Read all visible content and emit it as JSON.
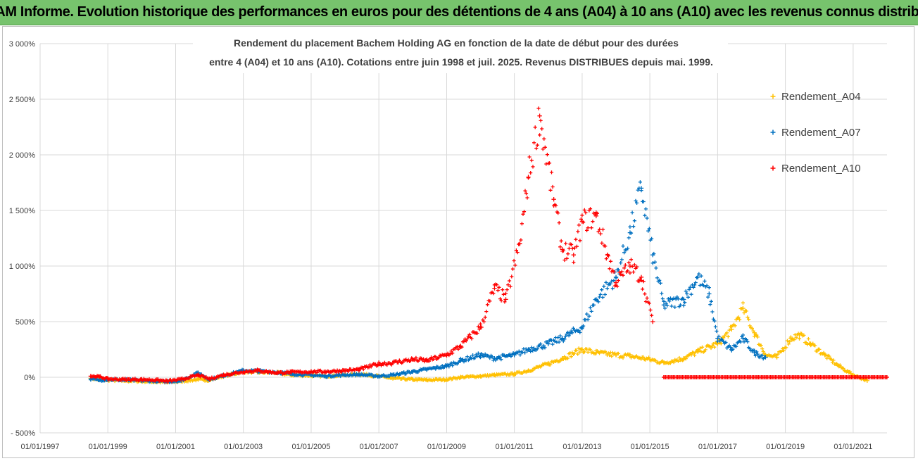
{
  "banner": {
    "title": "ADAM Informe. Evolution historique des performances en euros pour des détentions de 4 ans (A04) à 10 ans (A10) avec les revenus connus distribués"
  },
  "chart_data": {
    "type": "scatter",
    "title_line1": "Rendement du placement Bachem Holding AG en fonction de la date de début pour des durées",
    "title_line2": "entre 4 (A04) et 10 ans (A10). Cotations entre juin 1998 et juil. 2025. Revenus DISTRIBUES depuis mai. 1999.",
    "xlabel": "",
    "ylabel": "",
    "x_range": [
      "01/01/1997",
      "01/01/2022"
    ],
    "y_range": [
      -500,
      3000
    ],
    "y_ticks": [
      "3 000%",
      "2 500%",
      "2 000%",
      "1 500%",
      "1 000%",
      "500%",
      "0%",
      "- 500%"
    ],
    "x_ticks": [
      "01/01/1997",
      "01/01/1999",
      "01/01/2001",
      "01/01/2003",
      "01/01/2005",
      "01/01/2007",
      "01/01/2009",
      "01/01/2011",
      "01/01/2013",
      "01/01/2015",
      "01/01/2017",
      "01/01/2019",
      "01/01/2021"
    ],
    "grid": true,
    "legend_position": "right",
    "marker": "+",
    "series": [
      {
        "name": "Rendement_A04",
        "color": "#FFC000",
        "points": [
          [
            "1998-07-01",
            -10
          ],
          [
            "1998-10-01",
            -20
          ],
          [
            "1999-01-01",
            -25
          ],
          [
            "1999-06-01",
            -30
          ],
          [
            "2000-01-01",
            -35
          ],
          [
            "2000-06-01",
            -40
          ],
          [
            "2000-10-01",
            -45
          ],
          [
            "2001-03-01",
            -35
          ],
          [
            "2001-09-01",
            -20
          ],
          [
            "2002-01-01",
            -25
          ],
          [
            "2002-06-01",
            10
          ],
          [
            "2003-01-01",
            50
          ],
          [
            "2003-06-01",
            45
          ],
          [
            "2004-01-01",
            40
          ],
          [
            "2004-06-01",
            20
          ],
          [
            "2005-01-01",
            15
          ],
          [
            "2005-06-01",
            10
          ],
          [
            "2006-01-01",
            20
          ],
          [
            "2006-06-01",
            30
          ],
          [
            "2007-01-01",
            10
          ],
          [
            "2007-06-01",
            -10
          ],
          [
            "2008-01-01",
            -20
          ],
          [
            "2008-06-01",
            -25
          ],
          [
            "2009-01-01",
            -20
          ],
          [
            "2009-06-01",
            0
          ],
          [
            "2010-01-01",
            10
          ],
          [
            "2010-06-01",
            20
          ],
          [
            "2011-01-01",
            30
          ],
          [
            "2011-06-01",
            60
          ],
          [
            "2012-01-01",
            120
          ],
          [
            "2012-06-01",
            170
          ],
          [
            "2013-01-01",
            250
          ],
          [
            "2013-06-01",
            220
          ],
          [
            "2014-01-01",
            200
          ],
          [
            "2014-06-01",
            190
          ],
          [
            "2015-01-01",
            160
          ],
          [
            "2015-06-01",
            130
          ],
          [
            "2016-01-01",
            170
          ],
          [
            "2016-06-01",
            230
          ],
          [
            "2017-01-01",
            300
          ],
          [
            "2017-06-01",
            430
          ],
          [
            "2017-10-01",
            620
          ],
          [
            "2018-02-01",
            400
          ],
          [
            "2018-06-01",
            200
          ],
          [
            "2018-10-01",
            180
          ],
          [
            "2019-03-01",
            350
          ],
          [
            "2019-06-01",
            380
          ],
          [
            "2019-10-01",
            300
          ],
          [
            "2020-03-01",
            200
          ],
          [
            "2020-08-01",
            100
          ],
          [
            "2021-01-01",
            20
          ],
          [
            "2021-06-01",
            -30
          ]
        ]
      },
      {
        "name": "Rendement_A07",
        "color": "#0070C0",
        "points": [
          [
            "1998-07-01",
            -15
          ],
          [
            "1998-10-01",
            -25
          ],
          [
            "1999-01-01",
            -20
          ],
          [
            "1999-06-01",
            -25
          ],
          [
            "2000-01-01",
            -30
          ],
          [
            "2000-06-01",
            -35
          ],
          [
            "2000-10-01",
            -40
          ],
          [
            "2001-03-01",
            -30
          ],
          [
            "2001-09-01",
            40
          ],
          [
            "2002-01-01",
            -20
          ],
          [
            "2002-06-01",
            15
          ],
          [
            "2003-01-01",
            60
          ],
          [
            "2003-06-01",
            55
          ],
          [
            "2004-01-01",
            45
          ],
          [
            "2004-06-01",
            30
          ],
          [
            "2005-01-01",
            20
          ],
          [
            "2005-06-01",
            10
          ],
          [
            "2006-01-01",
            20
          ],
          [
            "2006-06-01",
            25
          ],
          [
            "2007-01-01",
            10
          ],
          [
            "2007-06-01",
            20
          ],
          [
            "2008-01-01",
            50
          ],
          [
            "2008-06-01",
            70
          ],
          [
            "2009-01-01",
            100
          ],
          [
            "2009-06-01",
            150
          ],
          [
            "2010-01-01",
            200
          ],
          [
            "2010-06-01",
            170
          ],
          [
            "2011-01-01",
            200
          ],
          [
            "2011-06-01",
            250
          ],
          [
            "2012-01-01",
            300
          ],
          [
            "2012-06-01",
            350
          ],
          [
            "2013-01-01",
            450
          ],
          [
            "2013-06-01",
            700
          ],
          [
            "2014-01-01",
            900
          ],
          [
            "2014-06-01",
            1300
          ],
          [
            "2014-10-01",
            1700
          ],
          [
            "2015-02-01",
            1100
          ],
          [
            "2015-06-01",
            650
          ],
          [
            "2016-01-01",
            700
          ],
          [
            "2016-06-01",
            900
          ],
          [
            "2016-10-01",
            750
          ],
          [
            "2017-01-01",
            350
          ],
          [
            "2017-06-01",
            250
          ],
          [
            "2017-10-01",
            350
          ],
          [
            "2018-02-01",
            220
          ],
          [
            "2018-06-01",
            180
          ]
        ]
      },
      {
        "name": "Rendement_A10",
        "color": "#FF0000",
        "points": [
          [
            "1998-07-01",
            10
          ],
          [
            "1998-10-01",
            5
          ],
          [
            "1999-01-01",
            -15
          ],
          [
            "1999-06-01",
            -20
          ],
          [
            "2000-01-01",
            -20
          ],
          [
            "2000-06-01",
            -25
          ],
          [
            "2000-10-01",
            -35
          ],
          [
            "2001-03-01",
            -20
          ],
          [
            "2001-09-01",
            20
          ],
          [
            "2002-01-01",
            -15
          ],
          [
            "2002-06-01",
            20
          ],
          [
            "2003-01-01",
            50
          ],
          [
            "2003-06-01",
            60
          ],
          [
            "2004-01-01",
            40
          ],
          [
            "2004-06-01",
            45
          ],
          [
            "2005-01-01",
            50
          ],
          [
            "2005-06-01",
            50
          ],
          [
            "2006-01-01",
            60
          ],
          [
            "2006-06-01",
            70
          ],
          [
            "2007-01-01",
            120
          ],
          [
            "2007-06-01",
            130
          ],
          [
            "2008-01-01",
            160
          ],
          [
            "2008-06-01",
            150
          ],
          [
            "2009-01-01",
            200
          ],
          [
            "2009-06-01",
            280
          ],
          [
            "2010-01-01",
            450
          ],
          [
            "2010-06-01",
            800
          ],
          [
            "2010-10-01",
            700
          ],
          [
            "2011-03-01",
            1200
          ],
          [
            "2011-06-01",
            1800
          ],
          [
            "2011-10-01",
            2350
          ],
          [
            "2012-03-01",
            1600
          ],
          [
            "2012-06-01",
            1150
          ],
          [
            "2012-10-01",
            1100
          ],
          [
            "2013-01-01",
            1400
          ],
          [
            "2013-06-01",
            1450
          ],
          [
            "2013-10-01",
            1100
          ],
          [
            "2014-01-01",
            850
          ],
          [
            "2014-06-01",
            1000
          ],
          [
            "2014-10-01",
            900
          ],
          [
            "2015-02-01",
            500
          ]
        ],
        "flat_zero_from": "2015-06-01",
        "flat_zero_to": "2021-12-31"
      }
    ]
  }
}
